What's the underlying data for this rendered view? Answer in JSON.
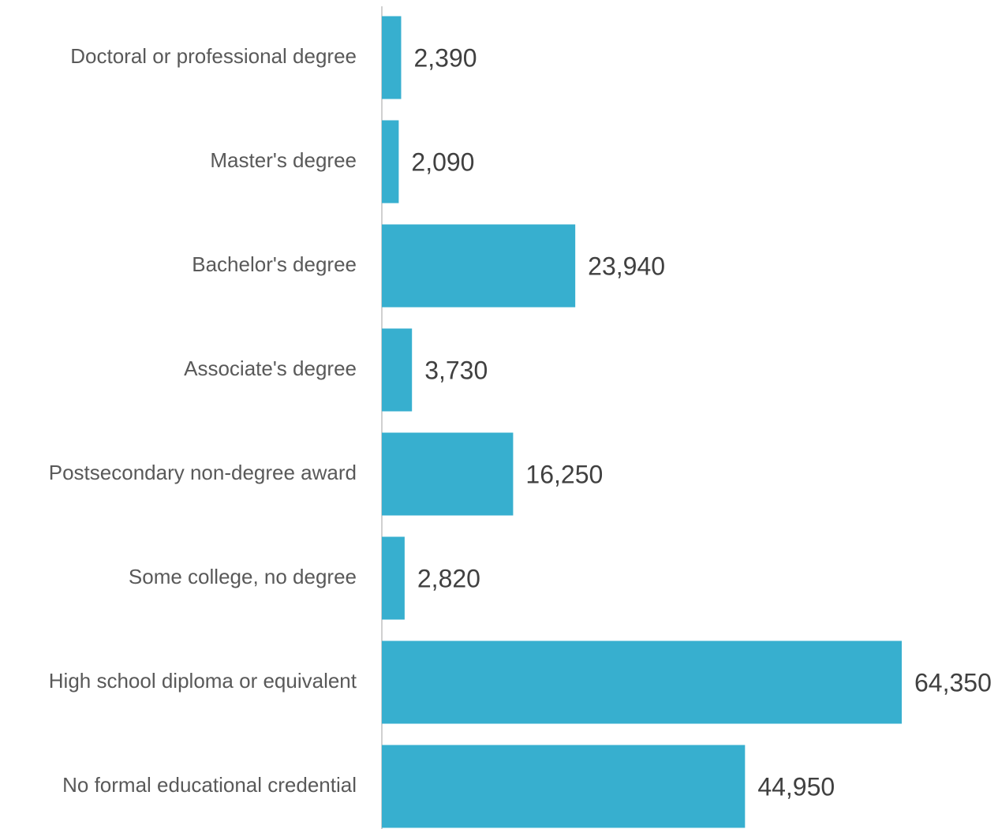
{
  "chart_data": {
    "type": "bar",
    "orientation": "horizontal",
    "categories": [
      "Doctoral or professional degree",
      "Master's degree",
      "Bachelor's degree",
      "Associate's degree",
      "Postsecondary non-degree award",
      "Some college, no degree",
      "High school diploma or equivalent",
      "No formal educational credential"
    ],
    "values": [
      2390,
      2090,
      23940,
      3730,
      16250,
      2820,
      64350,
      44950
    ],
    "value_labels": [
      "2,390",
      "2,090",
      "23,940",
      "3,730",
      "16,250",
      "2,820",
      "64,350",
      "44,950"
    ],
    "color": "#37afcf"
  }
}
